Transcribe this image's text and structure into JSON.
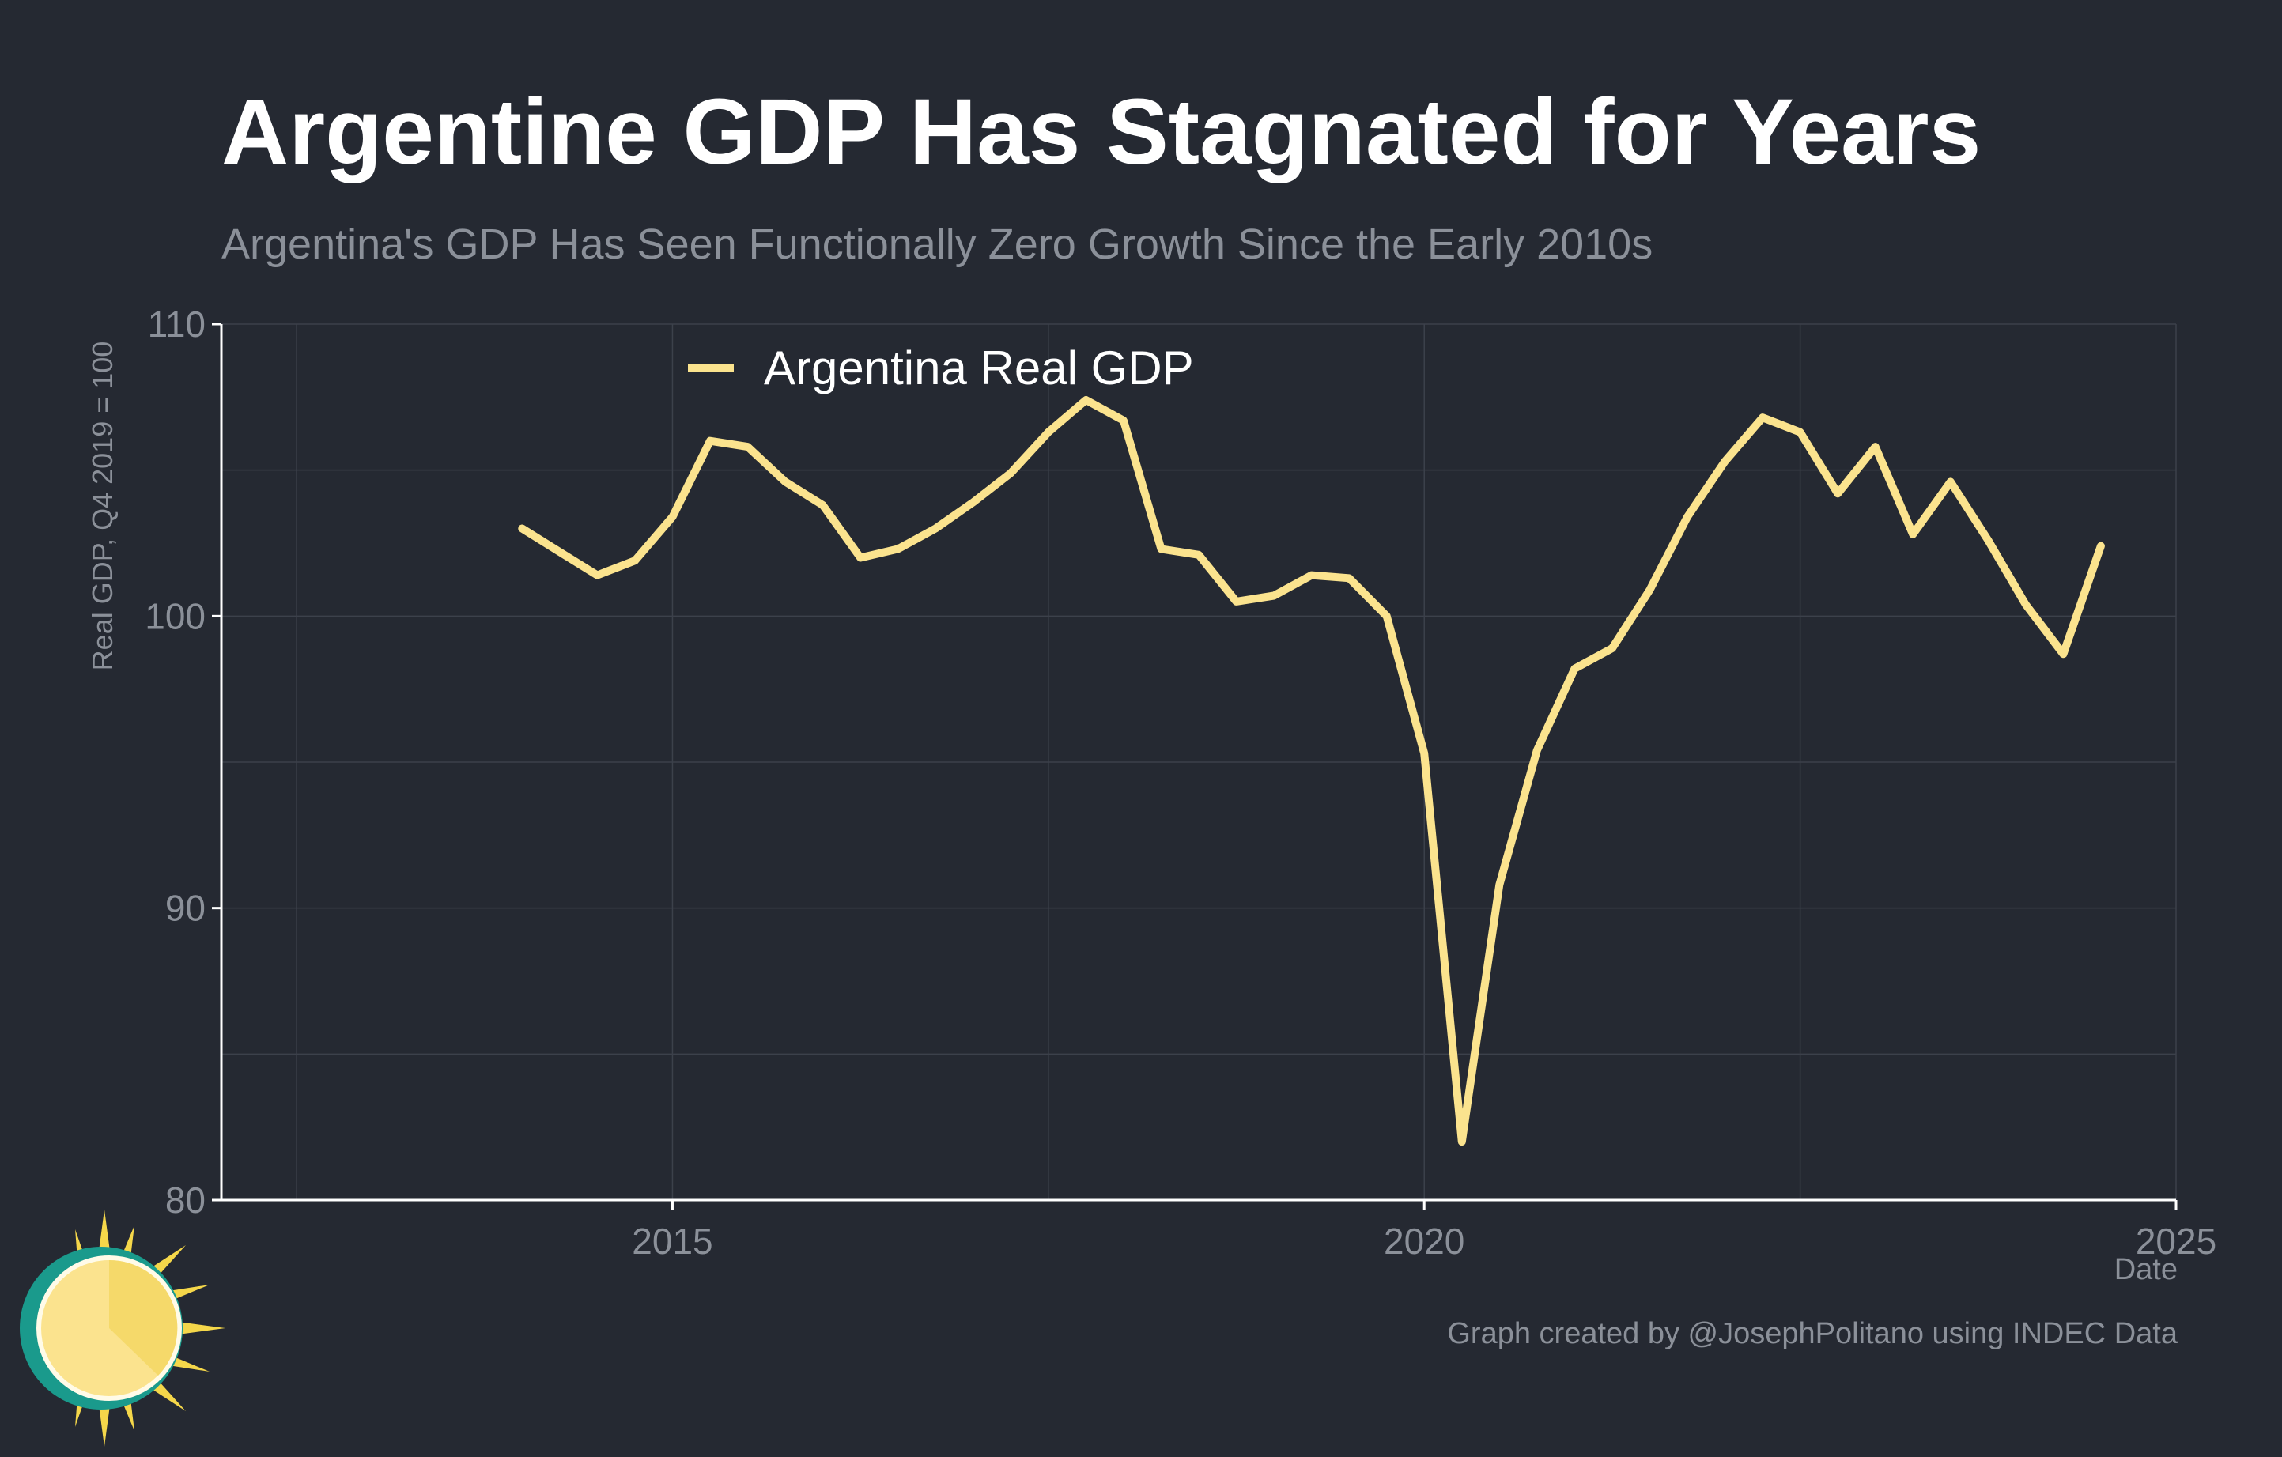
{
  "colors": {
    "background": "#252932",
    "grid": "#3c414b",
    "axis": "#ffffff",
    "line": "#fbe38e",
    "muted_text": "#8b9099",
    "title_text": "#ffffff"
  },
  "caption": "Graph created by @JosephPolitano using INDEC Data",
  "chart_data": {
    "type": "line",
    "title": "Argentine GDP Has Stagnated for Years",
    "subtitle": "Argentina's GDP Has Seen Functionally Zero Growth Since the Early 2010s",
    "xlabel": "Date",
    "ylabel": "Real GDP, Q4 2019 = 100",
    "xlim": [
      2012,
      2025
    ],
    "ylim": [
      80,
      110
    ],
    "x_ticks": [
      2015,
      2020,
      2025
    ],
    "x_tick_labels": [
      "2015",
      "2020",
      "2025"
    ],
    "y_ticks": [
      80,
      90,
      100,
      110
    ],
    "y_tick_labels": [
      "80",
      "90",
      "100",
      "110"
    ],
    "grid": true,
    "legend_position": "top-left",
    "series": [
      {
        "name": "Argentina Real GDP",
        "x": [
          2014.0,
          2014.25,
          2014.5,
          2014.75,
          2015.0,
          2015.25,
          2015.5,
          2015.75,
          2016.0,
          2016.25,
          2016.5,
          2016.75,
          2017.0,
          2017.25,
          2017.5,
          2017.75,
          2018.0,
          2018.25,
          2018.5,
          2018.75,
          2019.0,
          2019.25,
          2019.5,
          2019.75,
          2020.0,
          2020.25,
          2020.5,
          2020.75,
          2021.0,
          2021.25,
          2021.5,
          2021.75,
          2022.0,
          2022.25,
          2022.5,
          2022.75,
          2023.0,
          2023.25,
          2023.5,
          2023.75,
          2024.0,
          2024.25,
          2024.5
        ],
        "values": [
          103.0,
          102.2,
          101.4,
          101.9,
          103.4,
          106.0,
          105.8,
          104.6,
          103.8,
          102.0,
          102.3,
          103.0,
          103.9,
          104.9,
          106.3,
          107.4,
          106.7,
          102.3,
          102.1,
          100.5,
          100.7,
          101.4,
          101.3,
          100.0,
          95.3,
          82.0,
          90.8,
          95.4,
          98.2,
          98.9,
          100.9,
          103.4,
          105.3,
          106.8,
          106.3,
          104.2,
          105.8,
          102.8,
          104.6,
          102.6,
          100.4,
          98.7,
          102.4
        ]
      }
    ]
  }
}
